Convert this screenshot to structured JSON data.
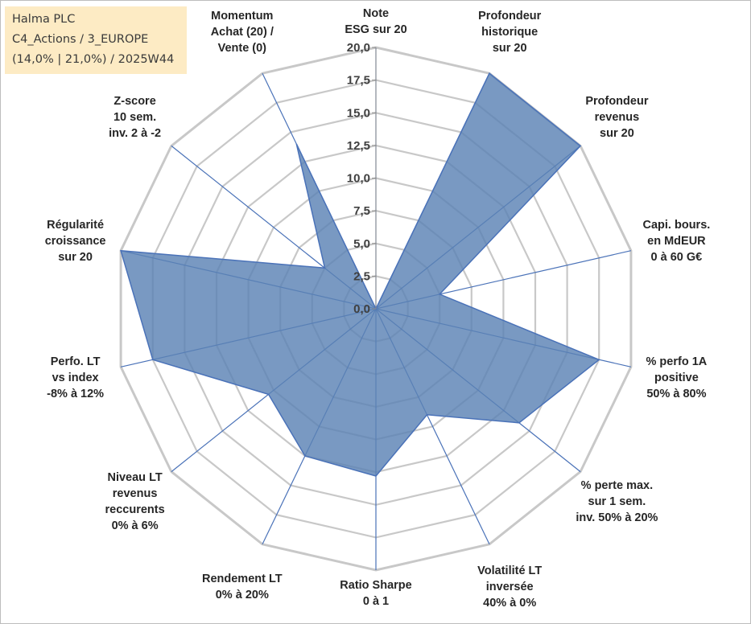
{
  "info": {
    "line1": "Halma PLC",
    "line2": "C4_Actions / 3_EUROPE",
    "line3": "(14,0% | 21,0%) / 2025W44"
  },
  "chart_data": {
    "type": "radar",
    "rmin": 0,
    "rmax": 20,
    "tick_step": 2.5,
    "ticks": [
      "0,0",
      "2,5",
      "5,0",
      "7,5",
      "10,0",
      "12,5",
      "15,0",
      "17,5",
      "20,0"
    ],
    "axes": [
      {
        "label": [
          "Note",
          "ESG sur 20"
        ],
        "value": 0
      },
      {
        "label": [
          "Profondeur",
          "historique",
          "sur 20"
        ],
        "value": 20
      },
      {
        "label": [
          "Profondeur",
          "revenus",
          "sur 20"
        ],
        "value": 20
      },
      {
        "label": [
          "Capi. bours.",
          "en MdEUR",
          "0 à 60 G€"
        ],
        "value": 5
      },
      {
        "label": [
          "% perfo 1A",
          "positive",
          "50% à 80%"
        ],
        "value": 17.5
      },
      {
        "label": [
          "% perte max.",
          "sur 1 sem.",
          "inv. 50% à 20%"
        ],
        "value": 14
      },
      {
        "label": [
          "Volatilité LT",
          "inversée",
          "40% à 0%"
        ],
        "value": 9
      },
      {
        "label": [
          "Ratio Sharpe",
          "0 à 1"
        ],
        "value": 12.8
      },
      {
        "label": [
          "Rendement LT",
          "0% à 20%"
        ],
        "value": 12.5
      },
      {
        "label": [
          "Niveau LT",
          "revenus",
          "reccurents",
          "0% à 6%"
        ],
        "value": 10.5
      },
      {
        "label": [
          "Perfo. LT",
          "vs index",
          "-8% à 12%"
        ],
        "value": 17.5
      },
      {
        "label": [
          "Régularité",
          "croissance",
          "sur 20"
        ],
        "value": 20
      },
      {
        "label": [
          "Z-score",
          "10 sem.",
          "inv. 2 à -2"
        ],
        "value": 5
      },
      {
        "label": [
          "Momentum",
          "Achat (20) /",
          "Vente (0)"
        ],
        "value": 14
      }
    ],
    "fill_color": "#5b83b5",
    "line_color": "#4a72b8",
    "grid_color": "#c8c8c8"
  }
}
